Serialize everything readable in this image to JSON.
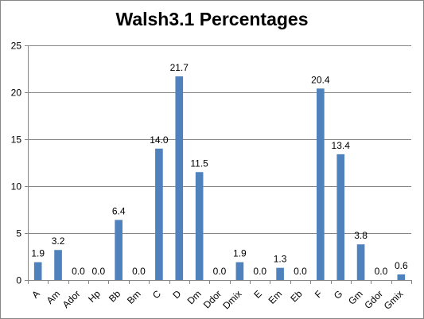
{
  "chart_data": {
    "type": "bar",
    "title": "Walsh3.1 Percentages",
    "xlabel": "",
    "ylabel": "",
    "categories": [
      "A",
      "Am",
      "Ador",
      "Hp",
      "Bb",
      "Bm",
      "C",
      "D",
      "Dm",
      "Ddor",
      "Dmix",
      "E",
      "Em",
      "Eb",
      "F",
      "G",
      "Gm",
      "Gdor",
      "Gmix"
    ],
    "values": [
      1.9,
      3.2,
      0.0,
      0.0,
      6.4,
      0.0,
      14.0,
      21.7,
      11.5,
      0.0,
      1.9,
      0.0,
      1.3,
      0.0,
      20.4,
      13.4,
      3.8,
      0.0,
      0.6
    ],
    "data_labels": [
      "1.9",
      "3.2",
      "0.0",
      "0.0",
      "6.4",
      "0.0",
      "14.0",
      "21.7",
      "11.5",
      "0.0",
      "1.9",
      "0.0",
      "1.3",
      "0.0",
      "20.4",
      "13.4",
      "3.8",
      "0.0",
      "0.6"
    ],
    "ylim": [
      0,
      25
    ],
    "yticks": [
      "0",
      "5",
      "10",
      "15",
      "20",
      "25"
    ],
    "grid": true,
    "legend": "none",
    "bar_color": "#4f81bd",
    "grid_color": "#868686"
  }
}
